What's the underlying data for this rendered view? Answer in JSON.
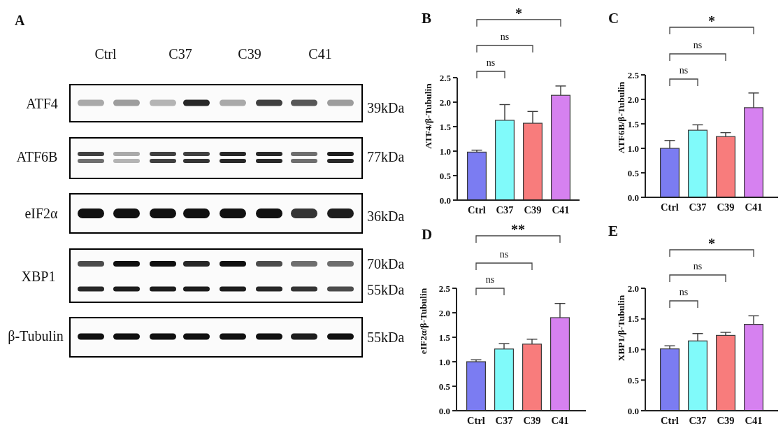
{
  "chart_data": [
    {
      "type": "other",
      "title": "A",
      "annotations": [
        "Ctrl",
        "C37",
        "C39",
        "C41",
        "ATF4",
        "39kDa",
        "ATF6B",
        "77kDa",
        "eIF2α",
        "36kDa",
        "XBP1",
        "70kDa",
        "55kDa",
        "β-Tubulin",
        "55kDa"
      ]
    },
    {
      "type": "bar",
      "title": "B",
      "ylabel": "ATF4/β-Tubulin",
      "categories": [
        "Ctrl",
        "C37",
        "C39",
        "C41"
      ],
      "values": [
        0.98,
        1.63,
        1.57,
        2.14
      ],
      "colors": [
        "#7b7cf2",
        "#80fafa",
        "#f87c7c",
        "#d681f0"
      ],
      "errors": [
        [
          0.98,
          1.02
        ],
        [
          1.63,
          1.95
        ],
        [
          1.57,
          1.81
        ],
        [
          2.14,
          2.33
        ]
      ],
      "ylim": [
        0,
        2.5
      ],
      "yticks": [
        {
          "value": 0,
          "label": "0.0"
        },
        0.5,
        {
          "value": 1,
          "label": "1.0"
        },
        1.5,
        {
          "value": 2,
          "label": "2.0"
        },
        2.5
      ],
      "annotations": [
        "ns",
        "ns",
        "*"
      ]
    },
    {
      "type": "bar",
      "title": "C",
      "ylabel": "ATF6B/β-Tubulin",
      "categories": [
        "Ctrl",
        "C37",
        "C39",
        "C41"
      ],
      "values": [
        1.0,
        1.37,
        1.24,
        1.83
      ],
      "colors": [
        "#7b7cf2",
        "#80fafa",
        "#f87c7c",
        "#d681f0"
      ],
      "errors": [
        [
          1.0,
          1.16
        ],
        [
          1.37,
          1.48
        ],
        [
          1.24,
          1.32
        ],
        [
          1.83,
          2.13
        ]
      ],
      "ylim": [
        0,
        2.5
      ],
      "yticks": [
        {
          "value": 0,
          "label": "0.0"
        },
        0.5,
        {
          "value": 1,
          "label": "1.0"
        },
        1.5,
        {
          "value": 2,
          "label": "2.0"
        },
        2.5
      ],
      "annotations": [
        "ns",
        "ns",
        "*"
      ]
    },
    {
      "type": "bar",
      "title": "D",
      "ylabel": "eIF2α/β-Tubulin",
      "categories": [
        "Ctrl",
        "C37",
        "C39",
        "C41"
      ],
      "values": [
        1.0,
        1.26,
        1.36,
        1.9
      ],
      "colors": [
        "#7b7cf2",
        "#80fafa",
        "#f87c7c",
        "#d681f0"
      ],
      "errors": [
        [
          1.0,
          1.04
        ],
        [
          1.26,
          1.37
        ],
        [
          1.36,
          1.46
        ],
        [
          1.9,
          2.19
        ]
      ],
      "ylim": [
        0,
        2.5
      ],
      "yticks": [
        {
          "value": 0,
          "label": "0.0"
        },
        0.5,
        {
          "value": 1,
          "label": "1.0"
        },
        1.5,
        {
          "value": 2,
          "label": "2.0"
        },
        2.5
      ],
      "annotations": [
        "ns",
        "ns",
        "**"
      ]
    },
    {
      "type": "bar",
      "title": "E",
      "ylabel": "XBP1/β-Tubulin",
      "categories": [
        "Ctrl",
        "C37",
        "C39",
        "C41"
      ],
      "values": [
        1.01,
        1.14,
        1.23,
        1.41
      ],
      "colors": [
        "#7b7cf2",
        "#80fafa",
        "#f87c7c",
        "#d681f0"
      ],
      "errors": [
        [
          1.01,
          1.06
        ],
        [
          1.14,
          1.26
        ],
        [
          1.23,
          1.28
        ],
        [
          1.41,
          1.55
        ]
      ],
      "ylim": [
        0,
        2.0
      ],
      "yticks": [
        {
          "value": 0,
          "label": "0.0"
        },
        0.5,
        {
          "value": 1,
          "label": "1.0"
        },
        1.5,
        {
          "value": 2,
          "label": "2.0"
        }
      ],
      "annotations": [
        "ns",
        "ns",
        "*"
      ]
    }
  ]
}
